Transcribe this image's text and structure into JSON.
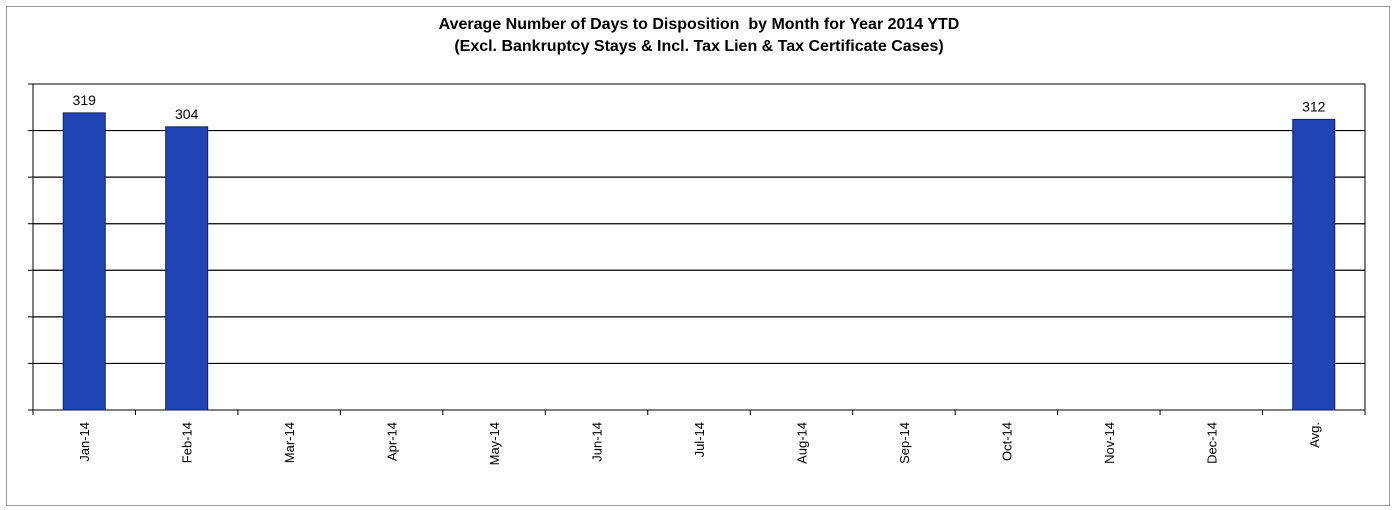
{
  "chart_data": {
    "type": "bar",
    "title": "Average Number of Days to Disposition  by Month for Year 2014 YTD",
    "subtitle": "(Excl. Bankruptcy Stays & Incl. Tax Lien & Tax Certificate Cases)",
    "categories": [
      "Jan-14",
      "Feb-14",
      "Mar-14",
      "Apr-14",
      "May-14",
      "Jun-14",
      "Jul-14",
      "Aug-14",
      "Sep-14",
      "Oct-14",
      "Nov-14",
      "Dec-14",
      "Avg."
    ],
    "values": [
      319,
      304,
      null,
      null,
      null,
      null,
      null,
      null,
      null,
      null,
      null,
      null,
      312
    ],
    "data_labels": [
      "319",
      "304",
      "",
      "",
      "",
      "",
      "",
      "",
      "",
      "",
      "",
      "",
      "312"
    ],
    "xlabel": "",
    "ylabel": "",
    "ylim": [
      0,
      350
    ],
    "y_gridline_step": 50,
    "y_tick_labels_shown": false,
    "grid": true,
    "legend": "none",
    "colors": {
      "bar_fill": "#1f45b5",
      "bar_stroke": "#0d1f66",
      "grid": "#000000",
      "axis": "#000000"
    }
  }
}
